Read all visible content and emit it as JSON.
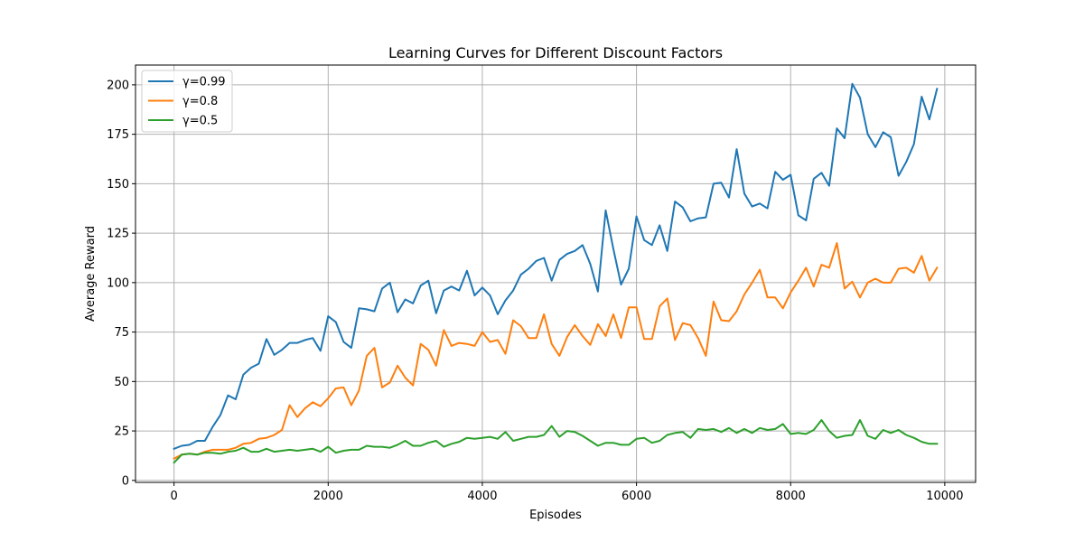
{
  "chart_data": {
    "type": "line",
    "title": "Learning Curves for Different Discount Factors",
    "xlabel": "Episodes",
    "ylabel": "Average Reward",
    "xlim": [
      -500,
      10400
    ],
    "ylim": [
      -1,
      210
    ],
    "xticks": [
      0,
      2000,
      4000,
      6000,
      8000,
      10000
    ],
    "yticks": [
      0,
      25,
      50,
      75,
      100,
      125,
      150,
      175,
      200
    ],
    "grid": true,
    "legend_position": "top-left",
    "x": [
      0,
      100,
      200,
      300,
      400,
      500,
      600,
      700,
      800,
      900,
      1000,
      1100,
      1200,
      1300,
      1400,
      1500,
      1600,
      1700,
      1800,
      1900,
      2000,
      2100,
      2200,
      2300,
      2400,
      2500,
      2600,
      2700,
      2800,
      2900,
      3000,
      3100,
      3200,
      3300,
      3400,
      3500,
      3600,
      3700,
      3800,
      3900,
      4000,
      4100,
      4200,
      4300,
      4400,
      4500,
      4600,
      4700,
      4800,
      4900,
      5000,
      5100,
      5200,
      5300,
      5400,
      5500,
      5600,
      5700,
      5800,
      5900,
      6000,
      6100,
      6200,
      6300,
      6400,
      6500,
      6600,
      6700,
      6800,
      6900,
      7000,
      7100,
      7200,
      7300,
      7400,
      7500,
      7600,
      7700,
      7800,
      7900,
      8000,
      8100,
      8200,
      8300,
      8400,
      8500,
      8600,
      8700,
      8800,
      8900,
      9000,
      9100,
      9200,
      9300,
      9400,
      9500,
      9600,
      9700,
      9800,
      9900
    ],
    "series": [
      {
        "name": "γ=0.99",
        "color": "#1f77b4",
        "values": [
          16,
          17.5,
          18,
          20,
          20,
          27,
          33,
          43,
          41,
          53.5,
          57,
          59,
          71.5,
          63.5,
          66,
          69.5,
          69.5,
          71,
          72,
          65.5,
          83,
          80,
          70,
          67,
          87,
          86.5,
          85.5,
          97,
          100,
          85,
          91.5,
          89.5,
          98.5,
          101,
          84.5,
          96,
          98,
          96,
          106,
          93.5,
          97.5,
          93.5,
          84,
          91,
          96,
          104,
          107,
          111,
          112.5,
          101,
          111.5,
          114.5,
          116,
          119,
          109.5,
          95.5,
          136.5,
          117,
          99,
          107,
          133.5,
          121.5,
          119,
          129,
          116,
          141,
          138,
          131,
          132.5,
          133,
          150,
          150.5,
          143,
          167.5,
          145,
          138.5,
          140,
          137.5,
          156,
          152,
          154.5,
          134,
          131.5,
          152.5,
          155.5,
          149,
          178,
          173,
          200.5,
          193.5,
          175,
          168.5,
          176,
          173.5,
          154,
          161,
          170,
          194,
          182.5,
          198
        ]
      },
      {
        "name": "γ=0.8",
        "color": "#ff7f0e",
        "values": [
          11,
          13,
          13.5,
          13,
          14.5,
          15.5,
          15.5,
          15.5,
          16.5,
          18.5,
          19,
          21,
          21.5,
          23,
          25.5,
          38,
          32,
          36.5,
          39.5,
          37.5,
          41.5,
          46.5,
          47,
          38,
          45.5,
          63,
          67,
          47,
          49.5,
          58,
          52,
          48,
          69,
          66,
          58,
          76,
          68,
          69.5,
          69,
          68,
          75,
          70,
          71,
          64,
          81,
          78,
          72,
          72,
          84,
          69,
          63,
          72.5,
          78.5,
          73,
          68.5,
          79,
          73,
          84,
          72,
          87.5,
          87.5,
          71.5,
          71.5,
          88,
          92,
          71,
          79.5,
          78.5,
          72,
          63,
          90.5,
          81,
          80.5,
          85.5,
          94,
          100,
          106.5,
          92.5,
          92.5,
          87,
          95,
          101,
          107.5,
          98,
          109,
          107.5,
          120,
          97,
          100.5,
          92.5,
          100,
          102,
          100,
          100,
          107,
          107.5,
          105,
          113.5,
          101,
          107.5
        ]
      },
      {
        "name": "γ=0.5",
        "color": "#2ca02c",
        "values": [
          9,
          13,
          13.5,
          13,
          14,
          14,
          13.5,
          14.5,
          15,
          16.5,
          14.5,
          14.5,
          16,
          14.5,
          15,
          15.5,
          15,
          15.5,
          16,
          14.5,
          17,
          14,
          15,
          15.5,
          15.5,
          17.5,
          17,
          17,
          16.5,
          18,
          20,
          17.5,
          17.5,
          19,
          20,
          17,
          18.5,
          19.5,
          21.5,
          21,
          21.5,
          22,
          21,
          24.5,
          20,
          21,
          22,
          22,
          23,
          27.5,
          22,
          25,
          24.5,
          22.5,
          20,
          17.5,
          19,
          19,
          18,
          18,
          21,
          21.5,
          19,
          20,
          23,
          24,
          24.5,
          21.5,
          26,
          25.5,
          26,
          24.5,
          26.5,
          24,
          26,
          24,
          26.5,
          25.5,
          26,
          28.5,
          23.5,
          24,
          23.5,
          25.5,
          30.5,
          25,
          21.5,
          22.5,
          23,
          30.5,
          22.5,
          21,
          25.5,
          24,
          25.5,
          23,
          21.5,
          19.5,
          18.5,
          18.5
        ]
      }
    ]
  }
}
